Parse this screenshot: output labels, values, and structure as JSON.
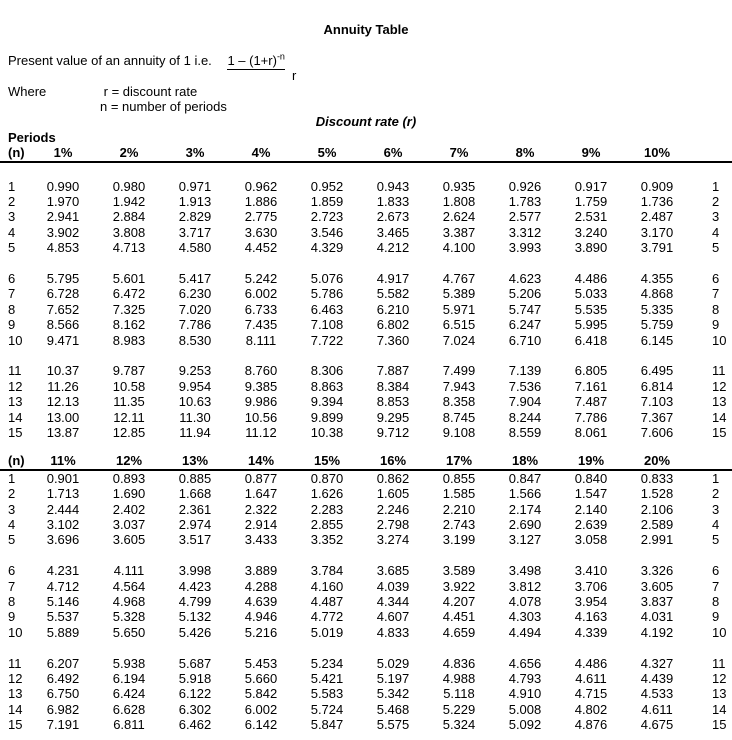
{
  "title": "Annuity Table",
  "formula": {
    "intro": "Present value of an annuity of 1 i.e.",
    "numerator_base": "1 – (1+r)",
    "numerator_sup": "-n",
    "denominator": "r"
  },
  "where": {
    "label": "Where",
    "r_definition": "r = discount rate",
    "n_definition": "n = number of periods"
  },
  "section_header": "Discount rate (r)",
  "periods_label": "Periods",
  "tables": [
    {
      "n_label": "(n)",
      "headers": [
        "1%",
        "2%",
        "3%",
        "4%",
        "5%",
        "6%",
        "7%",
        "8%",
        "9%",
        "10%"
      ],
      "gap_after_header": true,
      "rows": [
        {
          "n": "1",
          "values": [
            "0.990",
            "0.980",
            "0.971",
            "0.962",
            "0.952",
            "0.943",
            "0.935",
            "0.926",
            "0.917",
            "0.909"
          ]
        },
        {
          "n": "2",
          "values": [
            "1.970",
            "1.942",
            "1.913",
            "1.886",
            "1.859",
            "1.833",
            "1.808",
            "1.783",
            "1.759",
            "1.736"
          ]
        },
        {
          "n": "3",
          "values": [
            "2.941",
            "2.884",
            "2.829",
            "2.775",
            "2.723",
            "2.673",
            "2.624",
            "2.577",
            "2.531",
            "2.487"
          ]
        },
        {
          "n": "4",
          "values": [
            "3.902",
            "3.808",
            "3.717",
            "3.630",
            "3.546",
            "3.465",
            "3.387",
            "3.312",
            "3.240",
            "3.170"
          ]
        },
        {
          "n": "5",
          "values": [
            "4.853",
            "4.713",
            "4.580",
            "4.452",
            "4.329",
            "4.212",
            "4.100",
            "3.993",
            "3.890",
            "3.791"
          ]
        },
        {
          "n": "6",
          "values": [
            "5.795",
            "5.601",
            "5.417",
            "5.242",
            "5.076",
            "4.917",
            "4.767",
            "4.623",
            "4.486",
            "4.355"
          ]
        },
        {
          "n": "7",
          "values": [
            "6.728",
            "6.472",
            "6.230",
            "6.002",
            "5.786",
            "5.582",
            "5.389",
            "5.206",
            "5.033",
            "4.868"
          ]
        },
        {
          "n": "8",
          "values": [
            "7.652",
            "7.325",
            "7.020",
            "6.733",
            "6.463",
            "6.210",
            "5.971",
            "5.747",
            "5.535",
            "5.335"
          ]
        },
        {
          "n": "9",
          "values": [
            "8.566",
            "8.162",
            "7.786",
            "7.435",
            "7.108",
            "6.802",
            "6.515",
            "6.247",
            "5.995",
            "5.759"
          ]
        },
        {
          "n": "10",
          "values": [
            "9.471",
            "8.983",
            "8.530",
            "8.111",
            "7.722",
            "7.360",
            "7.024",
            "6.710",
            "6.418",
            "6.145"
          ]
        },
        {
          "n": "11",
          "values": [
            "10.37",
            "9.787",
            "9.253",
            "8.760",
            "8.306",
            "7.887",
            "7.499",
            "7.139",
            "6.805",
            "6.495"
          ]
        },
        {
          "n": "12",
          "values": [
            "11.26",
            "10.58",
            "9.954",
            "9.385",
            "8.863",
            "8.384",
            "7.943",
            "7.536",
            "7.161",
            "6.814"
          ]
        },
        {
          "n": "13",
          "values": [
            "12.13",
            "11.35",
            "10.63",
            "9.986",
            "9.394",
            "8.853",
            "8.358",
            "7.904",
            "7.487",
            "7.103"
          ]
        },
        {
          "n": "14",
          "values": [
            "13.00",
            "12.11",
            "11.30",
            "10.56",
            "9.899",
            "9.295",
            "8.745",
            "8.244",
            "7.786",
            "7.367"
          ]
        },
        {
          "n": "15",
          "values": [
            "13.87",
            "12.85",
            "11.94",
            "11.12",
            "10.38",
            "9.712",
            "9.108",
            "8.559",
            "8.061",
            "7.606"
          ]
        }
      ]
    },
    {
      "n_label": "(n)",
      "headers": [
        "11%",
        "12%",
        "13%",
        "14%",
        "15%",
        "16%",
        "17%",
        "18%",
        "19%",
        "20%"
      ],
      "gap_after_header": false,
      "rows": [
        {
          "n": "1",
          "values": [
            "0.901",
            "0.893",
            "0.885",
            "0.877",
            "0.870",
            "0.862",
            "0.855",
            "0.847",
            "0.840",
            "0.833"
          ]
        },
        {
          "n": "2",
          "values": [
            "1.713",
            "1.690",
            "1.668",
            "1.647",
            "1.626",
            "1.605",
            "1.585",
            "1.566",
            "1.547",
            "1.528"
          ]
        },
        {
          "n": "3",
          "values": [
            "2.444",
            "2.402",
            "2.361",
            "2.322",
            "2.283",
            "2.246",
            "2.210",
            "2.174",
            "2.140",
            "2.106"
          ]
        },
        {
          "n": "4",
          "values": [
            "3.102",
            "3.037",
            "2.974",
            "2.914",
            "2.855",
            "2.798",
            "2.743",
            "2.690",
            "2.639",
            "2.589"
          ]
        },
        {
          "n": "5",
          "values": [
            "3.696",
            "3.605",
            "3.517",
            "3.433",
            "3.352",
            "3.274",
            "3.199",
            "3.127",
            "3.058",
            "2.991"
          ]
        },
        {
          "n": "6",
          "values": [
            "4.231",
            "4.111",
            "3.998",
            "3.889",
            "3.784",
            "3.685",
            "3.589",
            "3.498",
            "3.410",
            "3.326"
          ]
        },
        {
          "n": "7",
          "values": [
            "4.712",
            "4.564",
            "4.423",
            "4.288",
            "4.160",
            "4.039",
            "3.922",
            "3.812",
            "3.706",
            "3.605"
          ]
        },
        {
          "n": "8",
          "values": [
            "5.146",
            "4.968",
            "4.799",
            "4.639",
            "4.487",
            "4.344",
            "4.207",
            "4.078",
            "3.954",
            "3.837"
          ]
        },
        {
          "n": "9",
          "values": [
            "5.537",
            "5.328",
            "5.132",
            "4.946",
            "4.772",
            "4.607",
            "4.451",
            "4.303",
            "4.163",
            "4.031"
          ]
        },
        {
          "n": "10",
          "values": [
            "5.889",
            "5.650",
            "5.426",
            "5.216",
            "5.019",
            "4.833",
            "4.659",
            "4.494",
            "4.339",
            "4.192"
          ]
        },
        {
          "n": "11",
          "values": [
            "6.207",
            "5.938",
            "5.687",
            "5.453",
            "5.234",
            "5.029",
            "4.836",
            "4.656",
            "4.486",
            "4.327"
          ]
        },
        {
          "n": "12",
          "values": [
            "6.492",
            "6.194",
            "5.918",
            "5.660",
            "5.421",
            "5.197",
            "4.988",
            "4.793",
            "4.611",
            "4.439"
          ]
        },
        {
          "n": "13",
          "values": [
            "6.750",
            "6.424",
            "6.122",
            "5.842",
            "5.583",
            "5.342",
            "5.118",
            "4.910",
            "4.715",
            "4.533"
          ]
        },
        {
          "n": "14",
          "values": [
            "6.982",
            "6.628",
            "6.302",
            "6.002",
            "5.724",
            "5.468",
            "5.229",
            "5.008",
            "4.802",
            "4.611"
          ]
        },
        {
          "n": "15",
          "values": [
            "7.191",
            "6.811",
            "6.462",
            "6.142",
            "5.847",
            "5.575",
            "5.324",
            "5.092",
            "4.876",
            "4.675"
          ]
        }
      ]
    }
  ]
}
